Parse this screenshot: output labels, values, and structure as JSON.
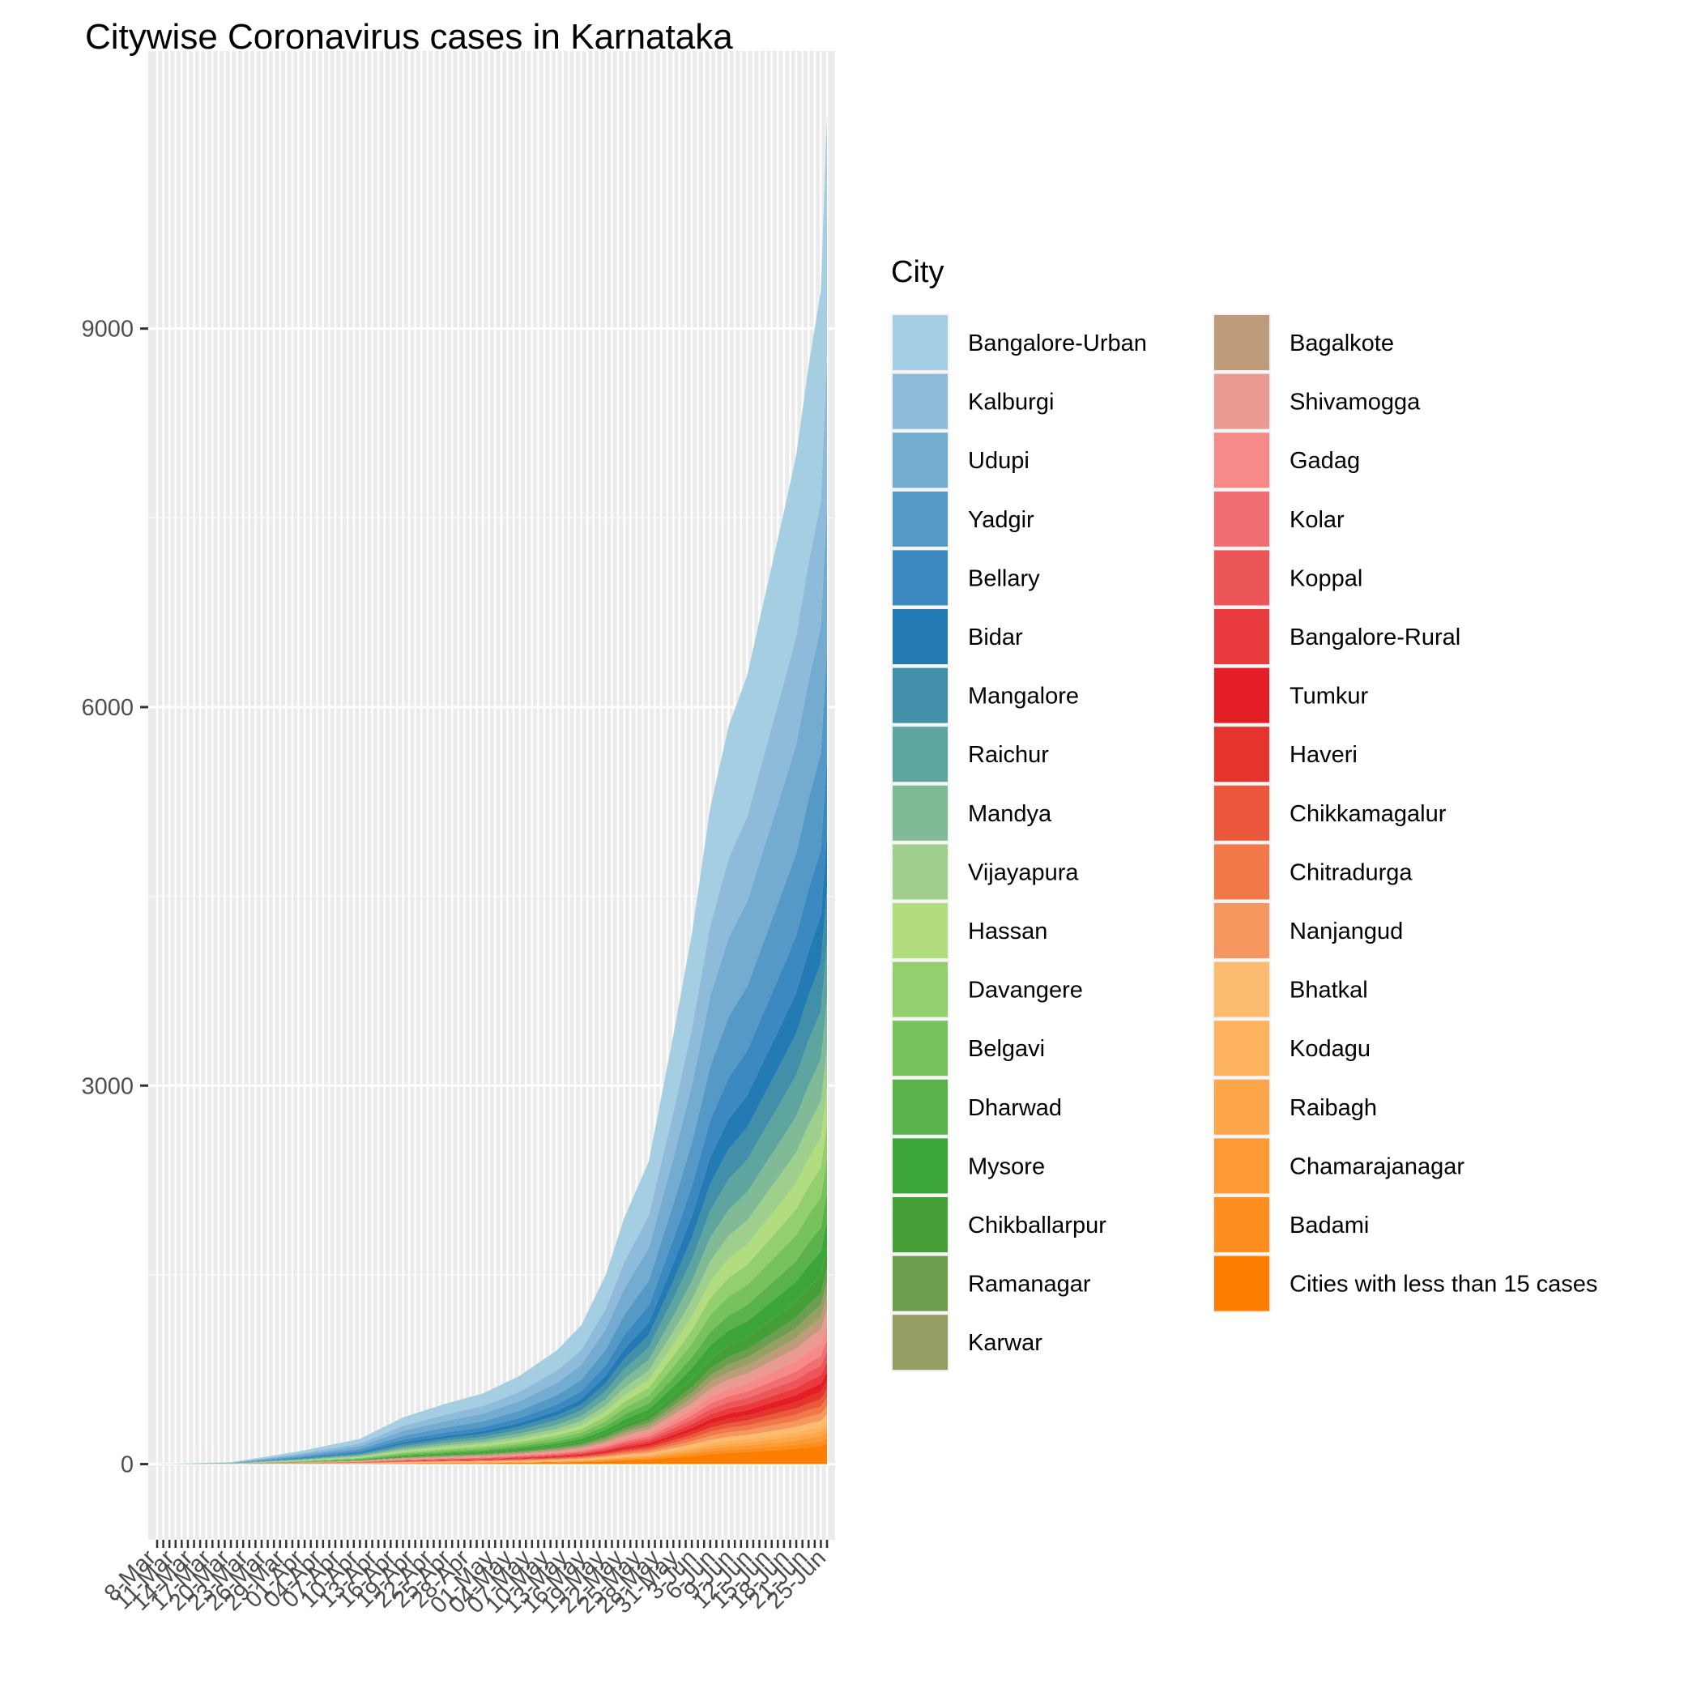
{
  "chart_data": {
    "type": "area",
    "title": "Citywise Coronavirus cases in Karnataka",
    "xlabel": "",
    "ylabel": "",
    "ylim": [
      -600,
      11200
    ],
    "yticks": [
      0,
      3000,
      6000,
      9000
    ],
    "ytick_labels": [
      "0",
      "3000",
      "6000",
      "9000"
    ],
    "x_dates_start": "2020-03-08",
    "x_dates_end": "2020-06-25",
    "x_tick_labels_visible": [
      "8-Mar",
      "11-Mar",
      "14-Mar",
      "17-Mar",
      "20-Mar",
      "23-Mar",
      "26-Mar",
      "29-Mar",
      "01-Apr",
      "04-Apr",
      "07-Apr",
      "10-Apr",
      "13-Apr",
      "16-Apr",
      "19-Apr",
      "22-Apr",
      "25-Apr",
      "28-Apr",
      "01-May",
      "04-May",
      "07-May",
      "10-May",
      "13-May",
      "16-May",
      "19-May",
      "22-May",
      "25-May",
      "28-May",
      "31-May",
      "3-Jun",
      "6-Jun",
      "9-Jun",
      "12-Jun",
      "15-Jun",
      "18-Jun",
      "21-Jun",
      "25-Jun"
    ],
    "total_checkpoints": [
      [
        "2020-03-08",
        0
      ],
      [
        "2020-03-20",
        15
      ],
      [
        "2020-03-31",
        100
      ],
      [
        "2020-04-10",
        200
      ],
      [
        "2020-04-17",
        370
      ],
      [
        "2020-04-24",
        480
      ],
      [
        "2020-04-30",
        560
      ],
      [
        "2020-05-06",
        700
      ],
      [
        "2020-05-12",
        900
      ],
      [
        "2020-05-16",
        1100
      ],
      [
        "2020-05-20",
        1500
      ],
      [
        "2020-05-23",
        1950
      ],
      [
        "2020-05-27",
        2400
      ],
      [
        "2020-05-31",
        3400
      ],
      [
        "2020-06-03",
        4200
      ],
      [
        "2020-06-06",
        5200
      ],
      [
        "2020-06-09",
        5850
      ],
      [
        "2020-06-12",
        6250
      ],
      [
        "2020-06-15",
        6900
      ],
      [
        "2020-06-18",
        7550
      ],
      [
        "2020-06-20",
        8000
      ],
      [
        "2020-06-22",
        8700
      ],
      [
        "2020-06-24",
        9300
      ],
      [
        "2020-06-25",
        10700
      ]
    ],
    "legend_title": "City",
    "legend_position": "right",
    "grid": true,
    "series": [
      {
        "name": "Bangalore-Urban",
        "color": "#a6cee3",
        "share": 0.175
      },
      {
        "name": "Kalburgi",
        "color": "#8fbbdb",
        "share": 0.105
      },
      {
        "name": "Udupi",
        "color": "#73abd1",
        "share": 0.105
      },
      {
        "name": "Yadgir",
        "color": "#5599c6",
        "share": 0.08
      },
      {
        "name": "Bellary",
        "color": "#3c88c0",
        "share": 0.055
      },
      {
        "name": "Bidar",
        "color": "#247ab3",
        "share": 0.04
      },
      {
        "name": "Mangalore",
        "color": "#418fa8",
        "share": 0.04
      },
      {
        "name": "Raichur",
        "color": "#5fa59f",
        "share": 0.04
      },
      {
        "name": "Mandya",
        "color": "#80ba96",
        "share": 0.035
      },
      {
        "name": "Vijayapura",
        "color": "#9fcf8d",
        "share": 0.03
      },
      {
        "name": "Hassan",
        "color": "#b1dd7f",
        "share": 0.025
      },
      {
        "name": "Davangere",
        "color": "#94cf6e",
        "share": 0.025
      },
      {
        "name": "Belgavi",
        "color": "#77c25c",
        "share": 0.025
      },
      {
        "name": "Dharwad",
        "color": "#5ab34a",
        "share": 0.02
      },
      {
        "name": "Mysore",
        "color": "#3da63b",
        "share": 0.02
      },
      {
        "name": "Chikballarpur",
        "color": "#459e36",
        "share": 0.015
      },
      {
        "name": "Ramanagar",
        "color": "#6d9d4e",
        "share": 0.01
      },
      {
        "name": "Karwar",
        "color": "#989f65",
        "share": 0.01
      },
      {
        "name": "Bagalkote",
        "color": "#be9b7a",
        "share": 0.01
      },
      {
        "name": "Shivamogga",
        "color": "#e99a91",
        "share": 0.012
      },
      {
        "name": "Gadag",
        "color": "#f78a88",
        "share": 0.01
      },
      {
        "name": "Kolar",
        "color": "#f26f71",
        "share": 0.008
      },
      {
        "name": "Koppal",
        "color": "#ed5658",
        "share": 0.008
      },
      {
        "name": "Bangalore-Rural",
        "color": "#e93b3e",
        "share": 0.007
      },
      {
        "name": "Tumkur",
        "color": "#e31e25",
        "share": 0.007
      },
      {
        "name": "Haveri",
        "color": "#e4342c",
        "share": 0.006
      },
      {
        "name": "Chikkamagalur",
        "color": "#ec583b",
        "share": 0.006
      },
      {
        "name": "Chitradurga",
        "color": "#f27749",
        "share": 0.006
      },
      {
        "name": "Nanjangud",
        "color": "#f69760",
        "share": 0.006
      },
      {
        "name": "Bhatkal",
        "color": "#fdbb6f",
        "share": 0.005
      },
      {
        "name": "Kodagu",
        "color": "#fdb35e",
        "share": 0.004
      },
      {
        "name": "Raibagh",
        "color": "#fea64a",
        "share": 0.004
      },
      {
        "name": "Chamarajanagar",
        "color": "#fe9a34",
        "share": 0.004
      },
      {
        "name": "Badami",
        "color": "#fe8e1e",
        "share": 0.004
      },
      {
        "name": "Cities with less than 15 cases",
        "color": "#fe7f00",
        "share": 0.015
      }
    ]
  }
}
